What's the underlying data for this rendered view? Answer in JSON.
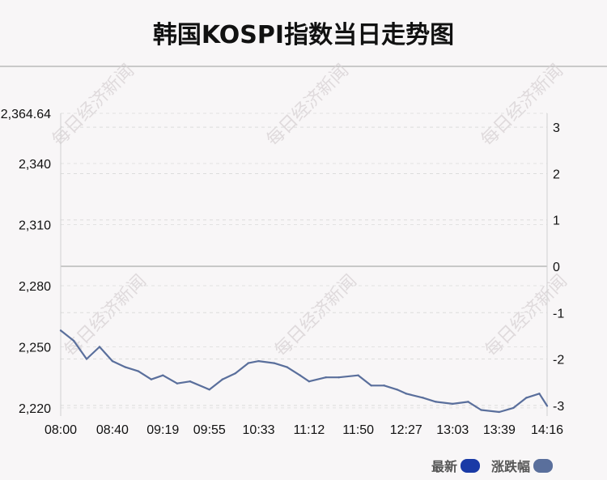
{
  "title": "韩国KOSPI指数当日走势图",
  "watermark": "每日经济新闻",
  "legend": [
    {
      "label": "最新",
      "color": "#1a3aa6"
    },
    {
      "label": "涨跌幅",
      "color": "#5a6f9c"
    }
  ],
  "chart_data": {
    "type": "line",
    "title": "韩国KOSPI指数当日走势图",
    "x_tick_labels": [
      "08:00",
      "08:40",
      "09:19",
      "09:55",
      "10:33",
      "11:12",
      "11:50",
      "12:27",
      "13:03",
      "13:39",
      "14:16"
    ],
    "y_left_ticks": [
      2364.64,
      2340,
      2310,
      2280,
      2250,
      2220
    ],
    "y_left_tick_labels": [
      "2,364.64",
      "2,340",
      "2,310",
      "2,280",
      "2,250",
      "2,220"
    ],
    "y_right_ticks": [
      3,
      2,
      1,
      0,
      -1,
      -2,
      -3
    ],
    "ylim_left": [
      2216,
      2364.64
    ],
    "ylim_right": [
      -3.23,
      3.3
    ],
    "prev_close": 2291,
    "grid": "dashed horizontal",
    "series": [
      {
        "name": "最新",
        "color": "#5a6f9c",
        "x": [
          "08:00",
          "08:10",
          "08:20",
          "08:30",
          "08:40",
          "08:50",
          "09:00",
          "09:10",
          "09:19",
          "09:30",
          "09:40",
          "09:55",
          "10:05",
          "10:15",
          "10:25",
          "10:33",
          "10:45",
          "10:55",
          "11:05",
          "11:12",
          "11:25",
          "11:35",
          "11:50",
          "12:00",
          "12:10",
          "12:20",
          "12:27",
          "12:40",
          "12:50",
          "13:03",
          "13:15",
          "13:25",
          "13:39",
          "13:50",
          "14:00",
          "14:10",
          "14:16"
        ],
        "values": [
          2258,
          2253,
          2244,
          2250,
          2243,
          2240,
          2238,
          2234,
          2236,
          2232,
          2233,
          2229,
          2234,
          2237,
          2242,
          2243,
          2242,
          2240,
          2236,
          2233,
          2235,
          2235,
          2236,
          2231,
          2231,
          2229,
          2227,
          2225,
          2223,
          2222,
          2223,
          2219,
          2218,
          2220,
          2225,
          2227,
          2221
        ]
      }
    ]
  }
}
